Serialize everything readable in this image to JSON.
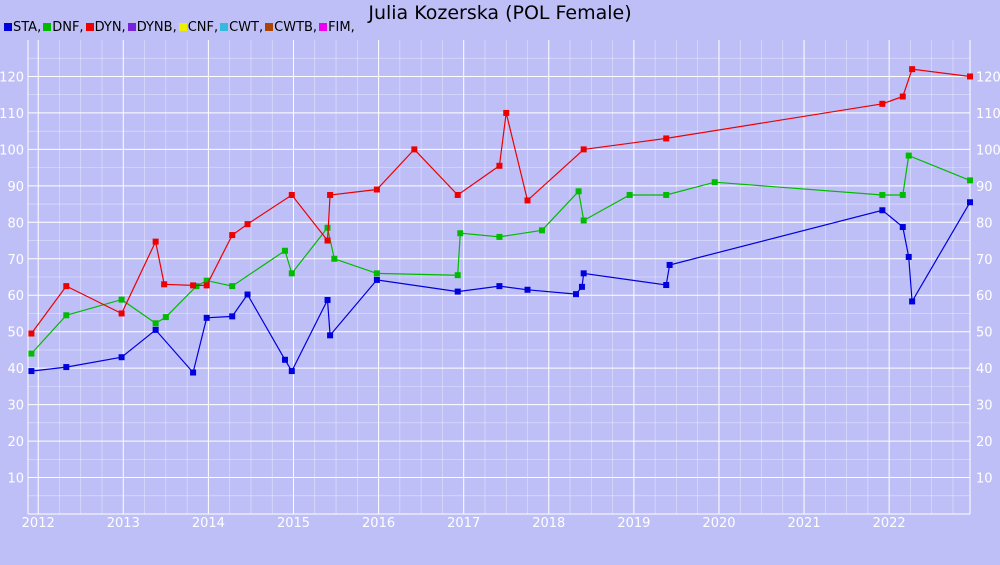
{
  "chart_data": {
    "type": "line",
    "title": "Julia Kozerska (POL Female)",
    "xlabel": "",
    "ylabel": "",
    "xlim": [
      2011.88,
      2022.95
    ],
    "ylim": [
      0,
      130
    ],
    "x_ticks": [
      2012,
      2013,
      2014,
      2015,
      2016,
      2017,
      2018,
      2019,
      2020,
      2021,
      2022
    ],
    "y_ticks": [
      10,
      20,
      30,
      40,
      50,
      60,
      70,
      80,
      90,
      100,
      110,
      120
    ],
    "grid": true,
    "background": "#bfbff8",
    "grid_color": "#ffffff",
    "legend": [
      {
        "label": "STA,",
        "color": "#0000dd"
      },
      {
        "label": "DNF,",
        "color": "#00bb00"
      },
      {
        "label": "DYN,",
        "color": "#ee0000"
      },
      {
        "label": "DYNB,",
        "color": "#7722dd"
      },
      {
        "label": "CNF,",
        "color": "#eeee00"
      },
      {
        "label": "CWT,",
        "color": "#33bbdd"
      },
      {
        "label": "CWTB,",
        "color": "#aa4400"
      },
      {
        "label": "FIM,",
        "color": "#ee00ee"
      }
    ],
    "series": [
      {
        "name": "STA",
        "color": "#0000dd",
        "points": [
          [
            2011.92,
            39.2
          ],
          [
            2012.33,
            40.3
          ],
          [
            2012.98,
            43.0
          ],
          [
            2013.38,
            50.5
          ],
          [
            2013.82,
            38.8
          ],
          [
            2013.98,
            53.8
          ],
          [
            2014.28,
            54.2
          ],
          [
            2014.46,
            60.2
          ],
          [
            2014.9,
            42.3
          ],
          [
            2014.98,
            39.2
          ],
          [
            2015.4,
            58.7
          ],
          [
            2015.43,
            49.0
          ],
          [
            2015.98,
            64.2
          ],
          [
            2016.93,
            61.0
          ],
          [
            2017.42,
            62.5
          ],
          [
            2017.75,
            61.5
          ],
          [
            2018.32,
            60.3
          ],
          [
            2018.39,
            62.3
          ],
          [
            2018.41,
            66.0
          ],
          [
            2019.38,
            62.8
          ],
          [
            2019.42,
            68.3
          ],
          [
            2021.92,
            83.3
          ],
          [
            2022.16,
            78.7
          ],
          [
            2022.23,
            70.5
          ],
          [
            2022.27,
            58.3
          ],
          [
            2022.95,
            85.5
          ]
        ]
      },
      {
        "name": "DNF",
        "color": "#00bb00",
        "points": [
          [
            2011.92,
            44.0
          ],
          [
            2012.33,
            54.5
          ],
          [
            2012.98,
            58.8
          ],
          [
            2013.38,
            52.3
          ],
          [
            2013.5,
            54.0
          ],
          [
            2013.86,
            62.5
          ],
          [
            2013.98,
            64.0
          ],
          [
            2014.28,
            62.5
          ],
          [
            2014.9,
            72.2
          ],
          [
            2014.98,
            66.0
          ],
          [
            2015.4,
            78.5
          ],
          [
            2015.48,
            70.0
          ],
          [
            2015.98,
            66.0
          ],
          [
            2016.93,
            65.5
          ],
          [
            2016.96,
            77.0
          ],
          [
            2017.42,
            76.0
          ],
          [
            2017.92,
            77.8
          ],
          [
            2018.35,
            88.5
          ],
          [
            2018.41,
            80.5
          ],
          [
            2018.95,
            87.5
          ],
          [
            2019.38,
            87.5
          ],
          [
            2019.95,
            91.0
          ],
          [
            2021.92,
            87.5
          ],
          [
            2022.16,
            87.5
          ],
          [
            2022.23,
            98.3
          ],
          [
            2022.95,
            91.5
          ]
        ]
      },
      {
        "name": "DYN",
        "color": "#ee0000",
        "points": [
          [
            2011.92,
            49.5
          ],
          [
            2012.33,
            62.5
          ],
          [
            2012.98,
            55.0
          ],
          [
            2013.38,
            74.7
          ],
          [
            2013.48,
            63.0
          ],
          [
            2013.82,
            62.7
          ],
          [
            2013.98,
            62.7
          ],
          [
            2014.28,
            76.5
          ],
          [
            2014.46,
            79.5
          ],
          [
            2014.98,
            87.5
          ],
          [
            2015.4,
            75.0
          ],
          [
            2015.43,
            87.5
          ],
          [
            2015.98,
            89.0
          ],
          [
            2016.42,
            100.0
          ],
          [
            2016.93,
            87.5
          ],
          [
            2017.42,
            95.5
          ],
          [
            2017.5,
            110.0
          ],
          [
            2017.75,
            86.0
          ],
          [
            2018.41,
            100.0
          ],
          [
            2019.38,
            103.0
          ],
          [
            2021.92,
            112.5
          ],
          [
            2022.16,
            114.5
          ],
          [
            2022.27,
            122.0
          ],
          [
            2022.95,
            120.0
          ]
        ]
      }
    ]
  }
}
